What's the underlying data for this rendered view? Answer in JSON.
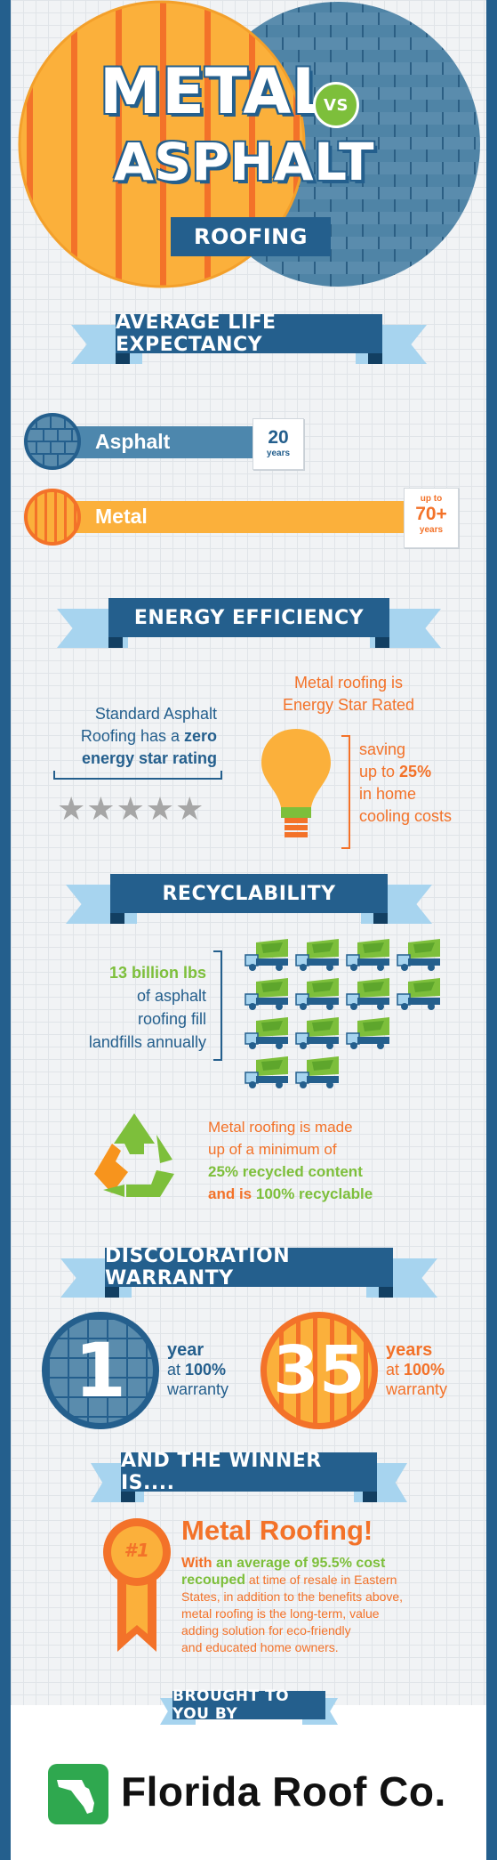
{
  "title": {
    "word1": "METAL",
    "vs": "VS",
    "word2": "ASPHALT",
    "word3": "ROOFING"
  },
  "life": {
    "heading": "AVERAGE LIFE EXPECTANCY",
    "asphalt_label": "Asphalt",
    "asphalt_years": "20",
    "asphalt_unit": "years",
    "metal_label": "Metal",
    "metal_prefix": "up to",
    "metal_years": "70+",
    "metal_unit": "years"
  },
  "energy": {
    "heading": "ENERGY EFFICIENCY",
    "asphalt_l1": "Standard Asphalt",
    "asphalt_l2": "Roofing has a ",
    "asphalt_zero": "zero",
    "asphalt_l3": "energy star rating",
    "metal_l1": "Metal roofing is",
    "metal_l2": "Energy Star Rated",
    "saving_l1": "saving",
    "saving_l2": "up to ",
    "saving_pct": "25%",
    "saving_l3": "in home",
    "saving_l4": "cooling costs",
    "stars_filled": 0,
    "stars_total": 5
  },
  "recycle": {
    "heading": "RECYCLABILITY",
    "amount": "13 billion lbs",
    "l2": "of asphalt",
    "l3": "roofing fill",
    "l4": "landfills annually",
    "m1": "Metal roofing is made",
    "m2": "up of a minimum of",
    "m3a": "25% recycled content",
    "m4a": "and is ",
    "m4b": "100% recyclable"
  },
  "warranty": {
    "heading": "DISCOLORATION WARRANTY",
    "asphalt_num": "1",
    "asphalt_unit": "year",
    "asphalt_at": "at ",
    "asphalt_pct": "100%",
    "asphalt_word": "warranty",
    "metal_num": "35",
    "metal_unit": "years",
    "metal_at": "at ",
    "metal_pct": "100%",
    "metal_word": "warranty"
  },
  "winner": {
    "heading": "AND THE WINNER IS....",
    "badge": "#1",
    "title": "Metal Roofing!",
    "l1a": "With ",
    "l1b": "an average of 95.5% cost",
    "l2a": "recouped",
    "l2b": " at time of resale in Eastern",
    "l3": "States, in addition to the benefits above,",
    "l4": "metal roofing is the long-term, value",
    "l5": "adding solution for eco-friendly",
    "l6": "and educated home owners."
  },
  "footer": {
    "heading": "BROUGHT TO YOU BY",
    "company": "Florida Roof Co."
  },
  "colors": {
    "blue": "#245f8d",
    "light_blue": "#a7d4ef",
    "orange": "#f37229",
    "yellow_orange": "#fbb03b",
    "green": "#7dbf3b"
  }
}
